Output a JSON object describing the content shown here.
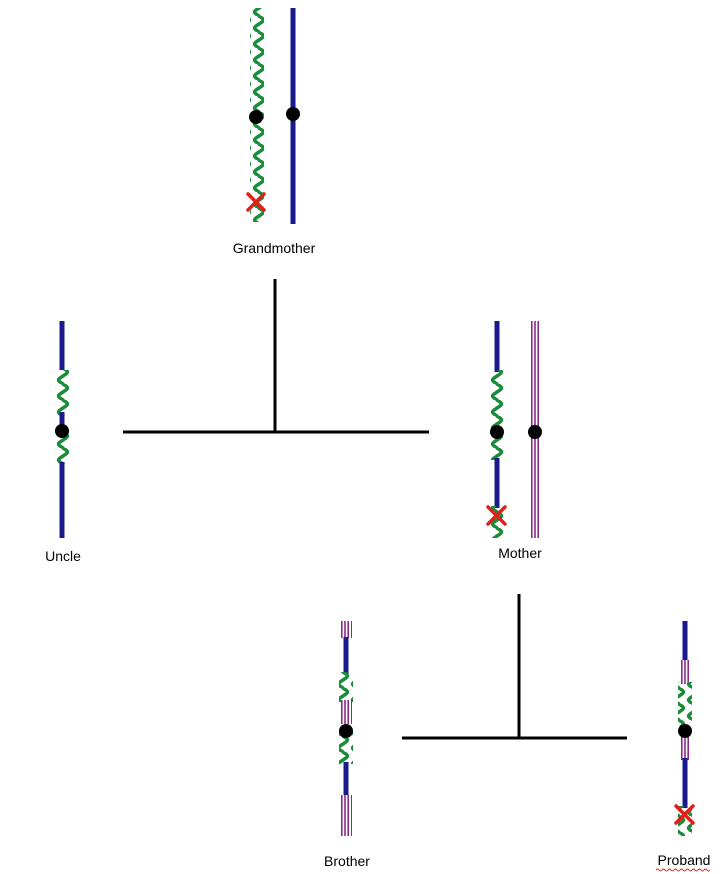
{
  "labels": {
    "grandmother": "Grandmother",
    "uncle": "Uncle",
    "mother": "Mother",
    "brother": "Brother",
    "proband": "Proband"
  },
  "colors": {
    "blue_chromosome": "#1a1a8c",
    "green_wavy_chromosome": "#1a8c3a",
    "purple_striped_chromosome": "#8a2b8a",
    "centromere": "#000000",
    "mutation_mark": "#e0201b",
    "pedigree_line": "#000000",
    "spellcheck_underline": "#e0201b"
  }
}
